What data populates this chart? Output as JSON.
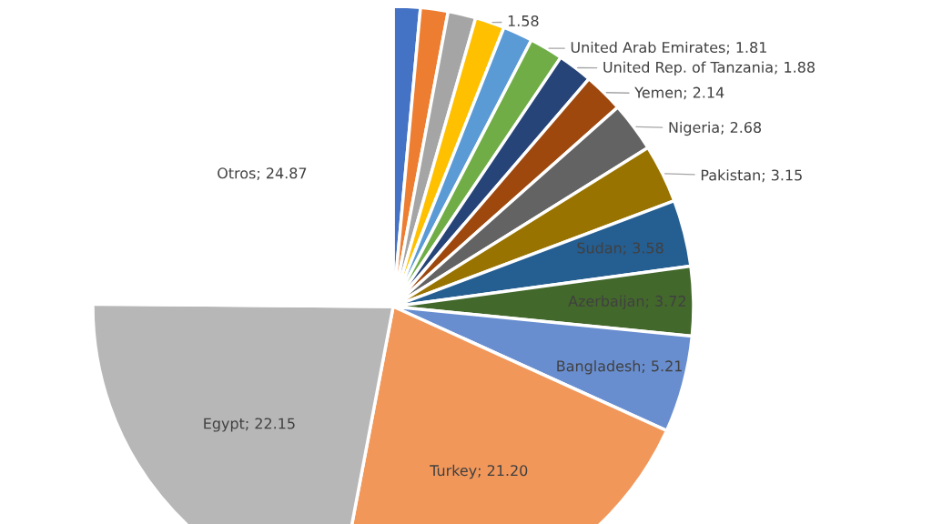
{
  "chart_data": {
    "type": "pie",
    "categories": [
      null,
      null,
      null,
      null,
      null,
      "United Arab Emirates",
      "United Rep. of Tanzania",
      "Yemen",
      "Nigeria",
      "Pakistan",
      "Sudan",
      "Azerbaijan",
      "Bangladesh",
      "Turkey",
      "Egypt",
      "Otros"
    ],
    "values": [
      1.45,
      1.48,
      1.5,
      1.58,
      1.6,
      1.81,
      1.88,
      2.14,
      2.68,
      3.15,
      3.58,
      3.72,
      5.21,
      21.2,
      22.15,
      24.87
    ],
    "value_labels": [
      null,
      null,
      null,
      "1.58",
      null,
      "1.81",
      "1.88",
      "2.14",
      "2.68",
      "3.15",
      "3.58",
      "3.72",
      "5.21",
      "21.20",
      "22.15",
      "24.87"
    ],
    "colors": [
      "#4472c4",
      "#ed7d31",
      "#a5a5a5",
      "#ffc000",
      "#5b9bd5",
      "#70ad47",
      "#264478",
      "#9e480e",
      "#636363",
      "#997300",
      "#255e91",
      "#43682b",
      "#698ed0",
      "#f1975a",
      "#b7b7b7",
      "#ffffff"
    ]
  }
}
